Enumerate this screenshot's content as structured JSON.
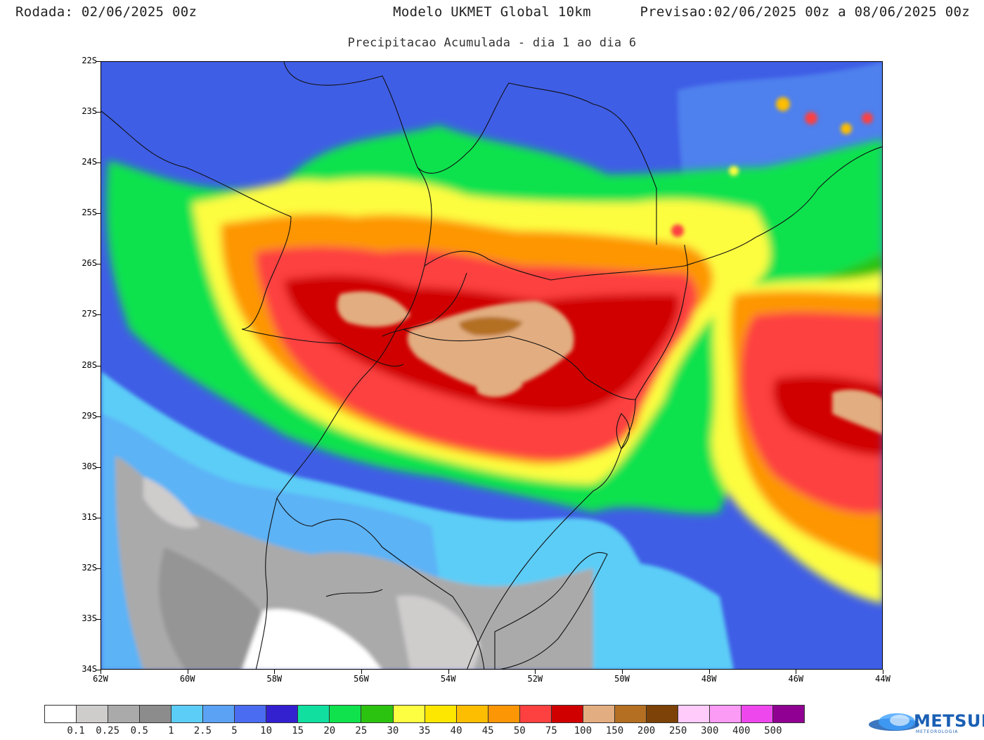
{
  "header": {
    "run": "Rodada: 02/06/2025 00z",
    "model": "Modelo UKMET Global 10km",
    "forecast": "Previsao:02/06/2025 00z a 08/06/2025 00z"
  },
  "subtitle": "Precipitacao Acumulada - dia 1 ao dia 6",
  "axes": {
    "lat_labels": [
      "22S",
      "23S",
      "24S",
      "25S",
      "26S",
      "27S",
      "28S",
      "29S",
      "30S",
      "31S",
      "32S",
      "33S",
      "34S"
    ],
    "lon_labels": [
      "62W",
      "60W",
      "58W",
      "56W",
      "54W",
      "52W",
      "50W",
      "48W",
      "46W",
      "44W"
    ]
  },
  "legend": {
    "colors": [
      "#ffffff",
      "#cfcccc",
      "#aaaaaa",
      "#8c8c8c",
      "#5ccdf7",
      "#5ba2f5",
      "#4a6cf0",
      "#3321d0",
      "#11dfa0",
      "#10e24e",
      "#2bc30f",
      "#fdfd41",
      "#fde600",
      "#fdbd00",
      "#fd9604",
      "#fd4040",
      "#d00000",
      "#e2ad80",
      "#b46f22",
      "#7c4208",
      "#fecbfa",
      "#fb9bf6",
      "#ef47ee",
      "#900092"
    ],
    "labels": [
      "0.1",
      "0.25",
      "0.5",
      "1",
      "2.5",
      "5",
      "10",
      "15",
      "20",
      "25",
      "30",
      "35",
      "40",
      "45",
      "50",
      "75",
      "100",
      "150",
      "200",
      "250",
      "300",
      "400",
      "500"
    ]
  },
  "logo": {
    "name": "METSUL",
    "tagline": "METEOROLOGIA"
  }
}
